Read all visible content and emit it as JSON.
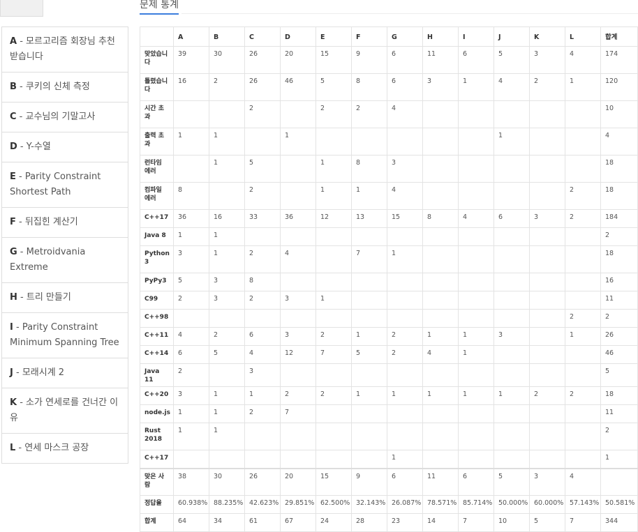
{
  "section_title": "문제 통계",
  "problems": [
    {
      "id": "A",
      "title": "모르고리즘 회장님 추천 받습니다"
    },
    {
      "id": "B",
      "title": "쿠키의 신체 측정"
    },
    {
      "id": "C",
      "title": "교수님의 기말고사"
    },
    {
      "id": "D",
      "title": "Y-수열"
    },
    {
      "id": "E",
      "title": "Parity Constraint Shortest Path"
    },
    {
      "id": "F",
      "title": "뒤집힌 계산기"
    },
    {
      "id": "G",
      "title": "Metroidvania Extreme"
    },
    {
      "id": "H",
      "title": "트리 만들기"
    },
    {
      "id": "I",
      "title": "Parity Constraint Minimum Spanning Tree"
    },
    {
      "id": "J",
      "title": "모래시계 2"
    },
    {
      "id": "K",
      "title": "소가 연세로를 건너간 이유"
    },
    {
      "id": "L",
      "title": "연세 마스크 공장"
    }
  ],
  "table": {
    "headers": [
      "",
      "A",
      "B",
      "C",
      "D",
      "E",
      "F",
      "G",
      "H",
      "I",
      "J",
      "K",
      "L",
      "합계"
    ],
    "rows": [
      {
        "label": "맞았습니다",
        "cells": [
          "39",
          "30",
          "26",
          "20",
          "15",
          "9",
          "6",
          "11",
          "6",
          "5",
          "3",
          "4",
          "174"
        ]
      },
      {
        "label": "틀렸습니다",
        "cells": [
          "16",
          "2",
          "26",
          "46",
          "5",
          "8",
          "6",
          "3",
          "1",
          "4",
          "2",
          "1",
          "120"
        ]
      },
      {
        "label": "시간 초과",
        "cells": [
          "",
          "",
          "2",
          "",
          "2",
          "2",
          "4",
          "",
          "",
          "",
          "",
          "",
          "10"
        ]
      },
      {
        "label": "출력 초과",
        "cells": [
          "1",
          "1",
          "",
          "1",
          "",
          "",
          "",
          "",
          "",
          "1",
          "",
          "",
          "4"
        ]
      },
      {
        "label": "런타임 에러",
        "cells": [
          "",
          "1",
          "5",
          "",
          "1",
          "8",
          "3",
          "",
          "",
          "",
          "",
          "",
          "18"
        ]
      },
      {
        "label": "컴파일 에러",
        "cells": [
          "8",
          "",
          "2",
          "",
          "1",
          "1",
          "4",
          "",
          "",
          "",
          "",
          "2",
          "18"
        ]
      },
      {
        "label": "C++17",
        "cells": [
          "36",
          "16",
          "33",
          "36",
          "12",
          "13",
          "15",
          "8",
          "4",
          "6",
          "3",
          "2",
          "184"
        ]
      },
      {
        "label": "Java 8",
        "cells": [
          "1",
          "1",
          "",
          "",
          "",
          "",
          "",
          "",
          "",
          "",
          "",
          "",
          "2"
        ]
      },
      {
        "label": "Python 3",
        "cells": [
          "3",
          "1",
          "2",
          "4",
          "",
          "7",
          "1",
          "",
          "",
          "",
          "",
          "",
          "18"
        ]
      },
      {
        "label": "PyPy3",
        "cells": [
          "5",
          "3",
          "8",
          "",
          "",
          "",
          "",
          "",
          "",
          "",
          "",
          "",
          "16"
        ]
      },
      {
        "label": "C99",
        "cells": [
          "2",
          "3",
          "2",
          "3",
          "1",
          "",
          "",
          "",
          "",
          "",
          "",
          "",
          "11"
        ]
      },
      {
        "label": "C++98",
        "cells": [
          "",
          "",
          "",
          "",
          "",
          "",
          "",
          "",
          "",
          "",
          "",
          "2",
          "2"
        ]
      },
      {
        "label": "C++11",
        "cells": [
          "4",
          "2",
          "6",
          "3",
          "2",
          "1",
          "2",
          "1",
          "1",
          "3",
          "",
          "1",
          "26"
        ]
      },
      {
        "label": "C++14",
        "cells": [
          "6",
          "5",
          "4",
          "12",
          "7",
          "5",
          "2",
          "4",
          "1",
          "",
          "",
          "",
          "46"
        ]
      },
      {
        "label": "Java 11",
        "cells": [
          "2",
          "",
          "3",
          "",
          "",
          "",
          "",
          "",
          "",
          "",
          "",
          "",
          "5"
        ]
      },
      {
        "label": "C++20",
        "cells": [
          "3",
          "1",
          "1",
          "2",
          "2",
          "1",
          "1",
          "1",
          "1",
          "1",
          "2",
          "2",
          "18"
        ]
      },
      {
        "label": "node.js",
        "cells": [
          "1",
          "1",
          "2",
          "7",
          "",
          "",
          "",
          "",
          "",
          "",
          "",
          "",
          "11"
        ]
      },
      {
        "label": "Rust 2018",
        "cells": [
          "1",
          "1",
          "",
          "",
          "",
          "",
          "",
          "",
          "",
          "",
          "",
          "",
          "2"
        ]
      },
      {
        "label": "C++17",
        "cells": [
          "",
          "",
          "",
          "",
          "",
          "",
          "1",
          "",
          "",
          "",
          "",
          "",
          "1"
        ]
      },
      {
        "label": "맞은 사람",
        "cells": [
          "38",
          "30",
          "26",
          "20",
          "15",
          "9",
          "6",
          "11",
          "6",
          "5",
          "3",
          "4",
          ""
        ]
      },
      {
        "label": "정답율",
        "cells": [
          "60.938%",
          "88.235%",
          "42.623%",
          "29.851%",
          "62.500%",
          "32.143%",
          "26.087%",
          "78.571%",
          "85.714%",
          "50.000%",
          "60.000%",
          "57.143%",
          "50.581%"
        ]
      },
      {
        "label": "합계",
        "cells": [
          "64",
          "34",
          "61",
          "67",
          "24",
          "28",
          "23",
          "14",
          "7",
          "10",
          "5",
          "7",
          "344"
        ]
      }
    ]
  }
}
